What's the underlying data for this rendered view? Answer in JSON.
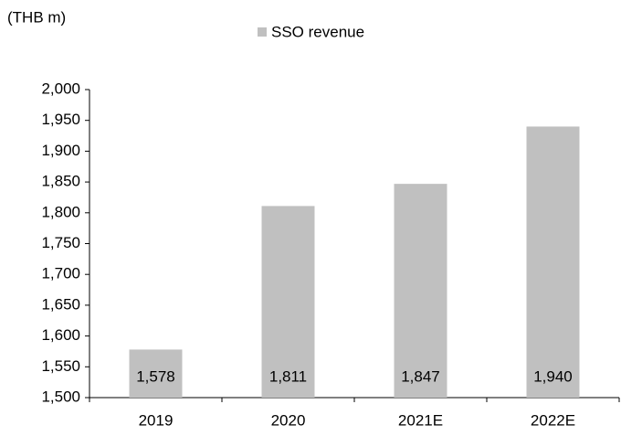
{
  "chart_data": {
    "type": "bar",
    "y_label": "(THB m)",
    "categories": [
      "2019",
      "2020",
      "2021E",
      "2022E"
    ],
    "series": [
      {
        "name": "SSO revenue",
        "color": "#c0c0c0",
        "values": [
          1578,
          1811,
          1847,
          1940
        ],
        "value_labels": [
          "1,578",
          "1,811",
          "1,847",
          "1,940"
        ]
      }
    ],
    "ylim": [
      1500,
      2000
    ],
    "yticks": [
      {
        "value": 1500,
        "label": "1,500"
      },
      {
        "value": 1550,
        "label": "1,550"
      },
      {
        "value": 1600,
        "label": "1,600"
      },
      {
        "value": 1650,
        "label": "1,650"
      },
      {
        "value": 1700,
        "label": "1,700"
      },
      {
        "value": 1750,
        "label": "1,750"
      },
      {
        "value": 1800,
        "label": "1,800"
      },
      {
        "value": 1850,
        "label": "1,850"
      },
      {
        "value": 1900,
        "label": "1,900"
      },
      {
        "value": 1950,
        "label": "1,950"
      },
      {
        "value": 2000,
        "label": "2,000"
      }
    ],
    "grid": false,
    "legend": "top"
  }
}
